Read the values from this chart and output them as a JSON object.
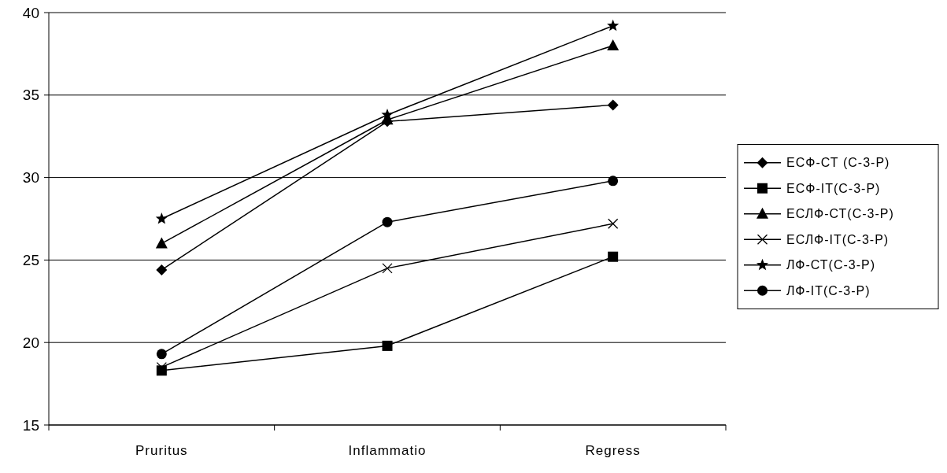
{
  "chart_data": {
    "type": "line",
    "categories": [
      "Pruritus",
      "Inflammatio",
      "Regress"
    ],
    "ylim": [
      15,
      40
    ],
    "yticks": [
      15,
      20,
      25,
      30,
      35,
      40
    ],
    "grid": "y",
    "legend": "right",
    "series": [
      {
        "name": "ЕСФ-СТ (С-3-Р)",
        "color": "#000000",
        "marker": "diamond",
        "values": [
          24.4,
          33.4,
          34.4
        ]
      },
      {
        "name": "ЕСФ-IТ(С-3-Р)",
        "color": "#000000",
        "marker": "square",
        "values": [
          18.3,
          19.8,
          25.2
        ]
      },
      {
        "name": "ЕСЛФ-СТ(С-3-Р)",
        "color": "#000000",
        "marker": "triangle",
        "values": [
          26.0,
          33.5,
          38.0
        ]
      },
      {
        "name": "ЕСЛФ-IТ(С-3-Р)",
        "color": "#000000",
        "marker": "cross",
        "values": [
          18.5,
          24.5,
          27.2
        ]
      },
      {
        "name": "ЛФ-СТ(С-3-Р)",
        "color": "#000000",
        "marker": "star",
        "values": [
          27.5,
          33.8,
          39.2
        ]
      },
      {
        "name": "ЛФ-IТ(С-3-Р)",
        "color": "#000000",
        "marker": "circle",
        "values": [
          19.3,
          27.3,
          29.8
        ]
      }
    ]
  }
}
